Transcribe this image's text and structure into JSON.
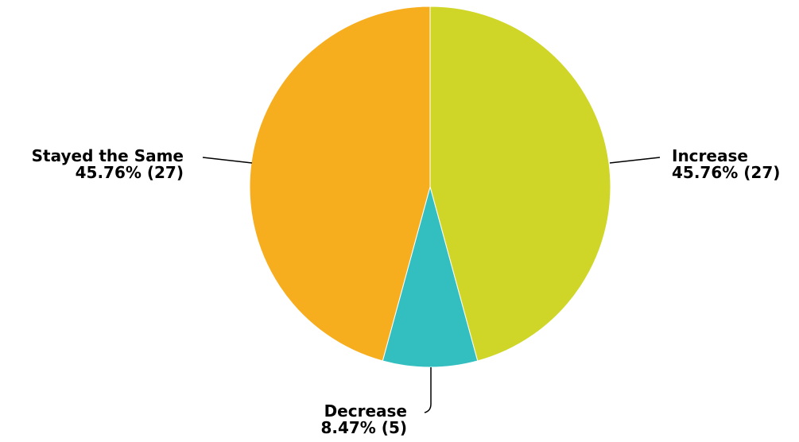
{
  "chart_data": {
    "type": "pie",
    "start_angle_deg": 0,
    "direction": "clockwise",
    "slices": [
      {
        "label": "Increase",
        "value": 27,
        "percent": "45.76%",
        "color": "#cfd628"
      },
      {
        "label": "Decrease",
        "value": 5,
        "percent": "8.47%",
        "color": "#33bfc0"
      },
      {
        "label": "Stayed the Same",
        "value": 27,
        "percent": "45.76%",
        "color": "#f6ae1f"
      }
    ]
  }
}
